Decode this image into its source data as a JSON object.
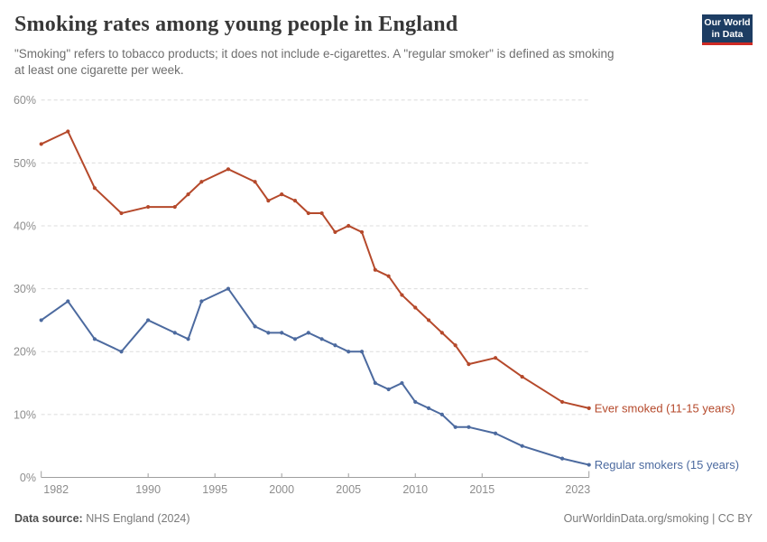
{
  "header": {
    "title": "Smoking rates among young people in England",
    "subtitle_lines": [
      "\"Smoking\" refers to tobacco products; it does not include e-cigarettes. A \"regular smoker\" is defined as smoking",
      "at least one cigarette per week."
    ],
    "logo": {
      "line1": "Our World",
      "line2": "in Data",
      "bg_color": "#1d3d63",
      "stripe_color": "#ce2a24"
    }
  },
  "footer": {
    "datasource_label": "Data source:",
    "datasource_value": " NHS England (2024)",
    "attribution": "OurWorldinData.org/smoking | CC BY"
  },
  "chart_data": {
    "type": "line",
    "title": "Smoking rates among young people in England",
    "x": [
      1982,
      1984,
      1986,
      1988,
      1990,
      1992,
      1993,
      1994,
      1996,
      1998,
      1999,
      2000,
      2001,
      2002,
      2003,
      2004,
      2005,
      2006,
      2007,
      2008,
      2009,
      2010,
      2011,
      2012,
      2013,
      2014,
      2016,
      2018,
      2021,
      2023
    ],
    "series": [
      {
        "name": "Ever smoked (11-15 years)",
        "color": "#b5492b",
        "values": [
          53,
          55,
          46,
          42,
          43,
          43,
          45,
          47,
          49,
          47,
          44,
          45,
          44,
          42,
          42,
          39,
          40,
          39,
          33,
          32,
          29,
          27,
          25,
          23,
          21,
          18,
          19,
          16,
          12,
          11
        ]
      },
      {
        "name": "Regular smokers (15 years)",
        "color": "#4c6a9f",
        "values": [
          25,
          28,
          22,
          20,
          25,
          23,
          22,
          28,
          30,
          24,
          23,
          23,
          22,
          23,
          22,
          21,
          20,
          20,
          15,
          14,
          15,
          12,
          11,
          10,
          8,
          8,
          7,
          5,
          3,
          2
        ]
      }
    ],
    "xlim": [
      1982,
      2023
    ],
    "ylim": [
      0,
      60
    ],
    "y_ticks": [
      0,
      10,
      20,
      30,
      40,
      50,
      60
    ],
    "y_tick_labels": [
      "0%",
      "10%",
      "20%",
      "30%",
      "40%",
      "50%",
      "60%"
    ],
    "x_ticks": [
      1982,
      1990,
      1995,
      2000,
      2005,
      2010,
      2015,
      2023
    ],
    "grid": "horizontal-dashed",
    "legend_position": "line-end-labels"
  }
}
